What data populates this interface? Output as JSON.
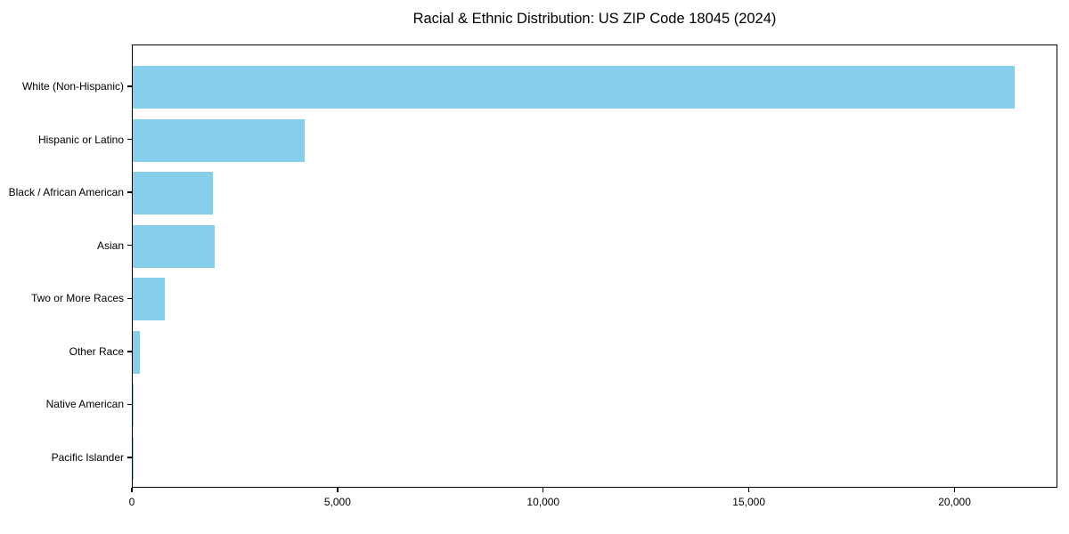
{
  "title": "Racial & Ethnic Distribution: US ZIP Code 18045 (2024)",
  "chart_data": {
    "type": "bar",
    "orientation": "horizontal",
    "title": "Racial & Ethnic Distribution: US ZIP Code 18045 (2024)",
    "xlabel": "",
    "ylabel": "",
    "categories": [
      "White (Non-Hispanic)",
      "Hispanic or Latino",
      "Black / African American",
      "Asian",
      "Two or More Races",
      "Other Race",
      "Native American",
      "Pacific Islander"
    ],
    "values": [
      21430,
      4180,
      1950,
      1990,
      780,
      170,
      30,
      10
    ],
    "xlim": [
      0,
      22500
    ],
    "x_ticks": [
      0,
      5000,
      10000,
      15000,
      20000
    ],
    "x_tick_labels": [
      "0",
      "5,000",
      "10,000",
      "15,000",
      "20,000"
    ],
    "bar_color": "#87CEEB",
    "text_color": "#000000",
    "grid": false,
    "legend": false
  }
}
